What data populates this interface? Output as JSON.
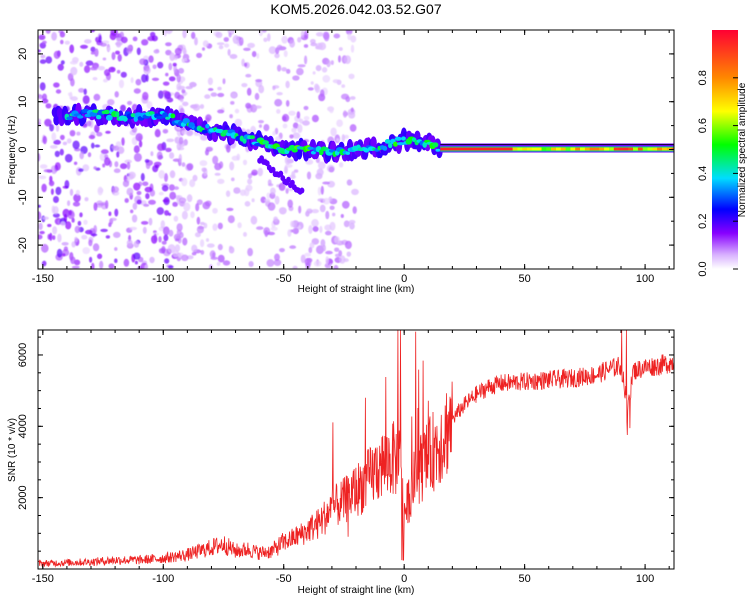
{
  "title": "KOM5.2026.042.03.52.G07",
  "chart_data": [
    {
      "type": "heatmap",
      "name": "spectrogram",
      "xlabel": "Height of straight line (km)",
      "ylabel": "Frequency (Hz)",
      "xlim": [
        -152,
        112
      ],
      "ylim": [
        -25,
        25
      ],
      "xticks": [
        -150,
        -100,
        -50,
        0,
        50,
        100
      ],
      "yticks": [
        -20,
        -10,
        0,
        10,
        20
      ],
      "ridge": {
        "x": [
          -145,
          -130,
          -115,
          -100,
          -90,
          -80,
          -70,
          -60,
          -50,
          -40,
          -30,
          -20,
          -10,
          -5,
          0,
          10,
          15,
          112
        ],
        "frequency": [
          7,
          7.5,
          7,
          7,
          5.5,
          4,
          3,
          1.5,
          0,
          0,
          -0.5,
          0,
          0.5,
          1.5,
          2,
          1.5,
          0,
          0
        ]
      },
      "colorbar": {
        "label": "Normalized spectral amplitude",
        "range": [
          0,
          1
        ],
        "ticks": [
          "0.0",
          "0.2",
          "0.4",
          "0.6",
          "0.8"
        ]
      }
    },
    {
      "type": "line",
      "name": "snr",
      "color": "#ee2222",
      "xlabel": "Height of straight line (km)",
      "ylabel": "SNR (10 * v/v)",
      "xlim": [
        -152,
        112
      ],
      "ylim": [
        0,
        6700
      ],
      "xticks": [
        -150,
        -100,
        -50,
        0,
        50,
        100
      ],
      "yticks": [
        2000,
        4000,
        6000
      ],
      "x": [
        -152,
        -140,
        -130,
        -120,
        -110,
        -100,
        -90,
        -80,
        -75,
        -70,
        -65,
        -60,
        -55,
        -50,
        -48,
        -45,
        -42,
        -40,
        -35,
        -30,
        -25,
        -20,
        -15,
        -10,
        -5,
        -2,
        0,
        5,
        10,
        15,
        20,
        25,
        30,
        35,
        40,
        50,
        60,
        70,
        80,
        85,
        90,
        93,
        95,
        100,
        105,
        112
      ],
      "y": [
        150,
        180,
        200,
        250,
        250,
        300,
        400,
        600,
        700,
        500,
        550,
        450,
        500,
        750,
        800,
        900,
        1000,
        1100,
        1300,
        1700,
        1900,
        2200,
        2500,
        2900,
        3100,
        3000,
        1500,
        2700,
        3100,
        3600,
        4200,
        4600,
        4900,
        5100,
        5200,
        5250,
        5300,
        5350,
        5450,
        5600,
        5700,
        4500,
        5550,
        5650,
        5700,
        5800
      ]
    }
  ]
}
